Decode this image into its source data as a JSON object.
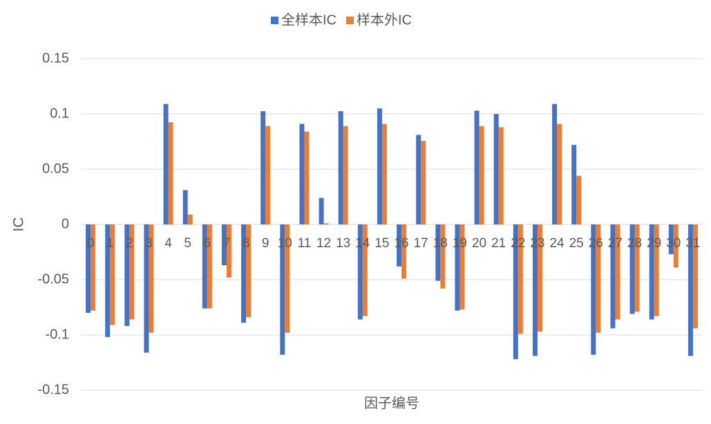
{
  "chart_data": {
    "type": "bar",
    "x_label": "因子编号",
    "y_label": "IC",
    "categories": [
      "0",
      "1",
      "2",
      "3",
      "4",
      "5",
      "6",
      "7",
      "8",
      "9",
      "10",
      "11",
      "12",
      "13",
      "14",
      "15",
      "16",
      "17",
      "18",
      "19",
      "20",
      "21",
      "22",
      "23",
      "24",
      "25",
      "26",
      "27",
      "28",
      "29",
      "30",
      "31"
    ],
    "series": [
      {
        "name": "全样本IC",
        "color": "#4472c4",
        "values": [
          -0.08,
          -0.102,
          -0.092,
          -0.116,
          0.109,
          0.031,
          -0.076,
          -0.037,
          -0.089,
          0.1025,
          -0.118,
          0.091,
          0.024,
          0.1025,
          -0.086,
          0.105,
          -0.038,
          0.081,
          -0.051,
          -0.078,
          0.103,
          0.1,
          -0.122,
          -0.119,
          0.109,
          0.072,
          -0.118,
          -0.094,
          -0.081,
          -0.086,
          -0.027,
          -0.119
        ]
      },
      {
        "name": "样本外IC",
        "color": "#ed7d31",
        "values": [
          -0.078,
          -0.091,
          -0.086,
          -0.098,
          0.0925,
          0.009,
          -0.076,
          -0.048,
          -0.084,
          0.089,
          -0.098,
          0.084,
          0.001,
          0.089,
          -0.083,
          0.091,
          -0.049,
          0.0756,
          -0.058,
          -0.077,
          0.089,
          0.088,
          -0.099,
          -0.097,
          0.091,
          0.044,
          -0.098,
          -0.086,
          -0.079,
          -0.083,
          -0.039,
          -0.094
        ]
      }
    ],
    "ylim": [
      -0.15,
      0.15
    ],
    "yticks": [
      -0.15,
      -0.1,
      -0.05,
      0,
      0.05,
      0.1,
      0.15
    ],
    "grid": true,
    "legend": "top"
  }
}
